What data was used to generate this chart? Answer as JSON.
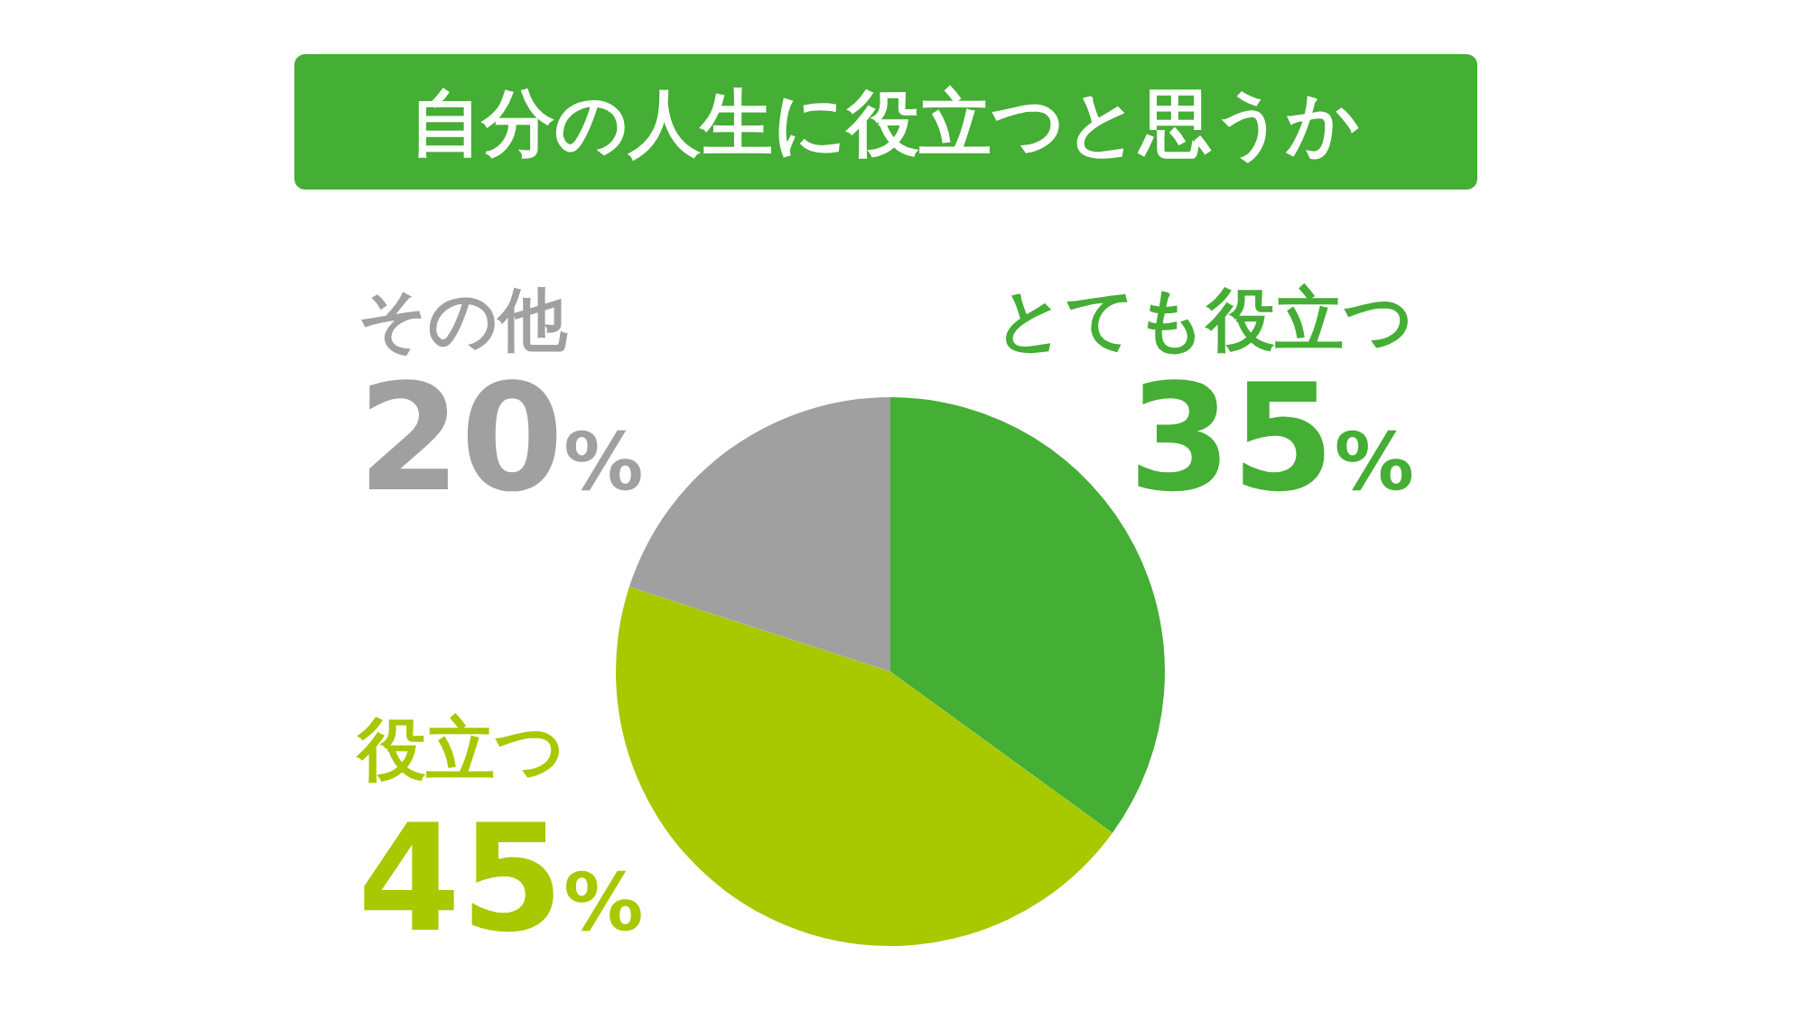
{
  "chart_data": {
    "type": "pie",
    "title": "自分の人生に役立つと思うか",
    "categories": [
      "とても役立つ",
      "役立つ",
      "その他"
    ],
    "values": [
      35,
      45,
      20
    ],
    "colors": [
      "#45ae35",
      "#a8c800",
      "#a0a0a0"
    ],
    "value_labels": [
      "35%",
      "45%",
      "20%"
    ]
  }
}
